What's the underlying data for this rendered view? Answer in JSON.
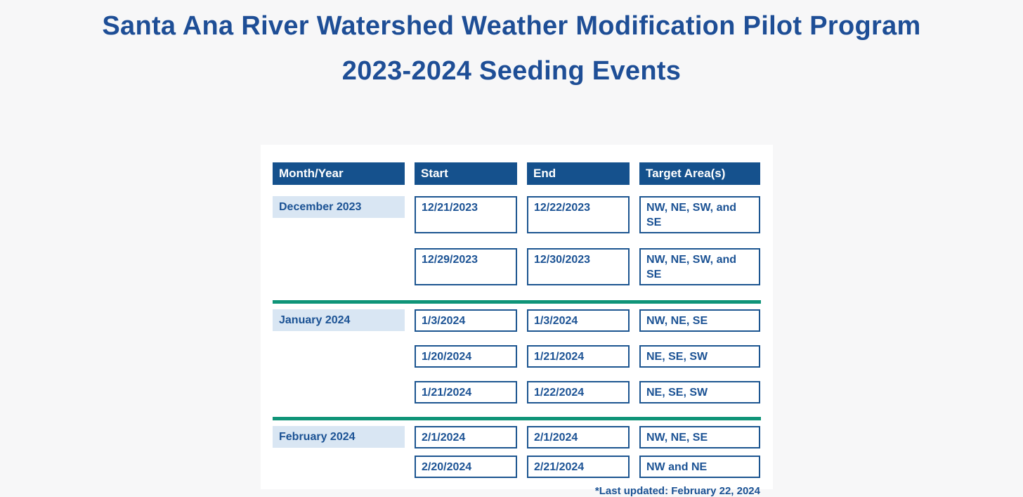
{
  "header": {
    "title_line1": "Santa Ana River Watershed Weather Modification Pilot Program",
    "title_line2": "2023-2024 Seeding Events"
  },
  "table": {
    "columns": [
      "Month/Year",
      "Start",
      "End",
      "Target Area(s)"
    ],
    "groups": [
      {
        "month": "December 2023",
        "events": [
          {
            "start": "12/21/2023",
            "end": "12/22/2023",
            "target": "NW, NE, SW, and SE"
          },
          {
            "start": "12/29/2023",
            "end": "12/30/2023",
            "target": "NW, NE, SW, and SE"
          }
        ]
      },
      {
        "month": "January 2024",
        "events": [
          {
            "start": "1/3/2024",
            "end": "1/3/2024",
            "target": "NW, NE, SE"
          },
          {
            "start": "1/20/2024",
            "end": "1/21/2024",
            "target": "NE, SE, SW"
          },
          {
            "start": "1/21/2024",
            "end": "1/22/2024",
            "target": "NE, SE, SW"
          }
        ]
      },
      {
        "month": "February 2024",
        "events": [
          {
            "start": "2/1/2024",
            "end": "2/1/2024",
            "target": "NW, NE, SE"
          },
          {
            "start": "2/20/2024",
            "end": "2/21/2024",
            "target": "NW and NE"
          }
        ]
      }
    ],
    "footnote": "*Last updated: February 22, 2024"
  },
  "colors": {
    "title_blue": "#1e4e96",
    "header_fill": "#15518d",
    "cell_text": "#1b5294",
    "box_border": "#1c5590",
    "month_fill": "#d9e6f3",
    "divider_green": "#0f9478",
    "card_background": "#ffffff",
    "page_background": "#f7f7f8"
  }
}
